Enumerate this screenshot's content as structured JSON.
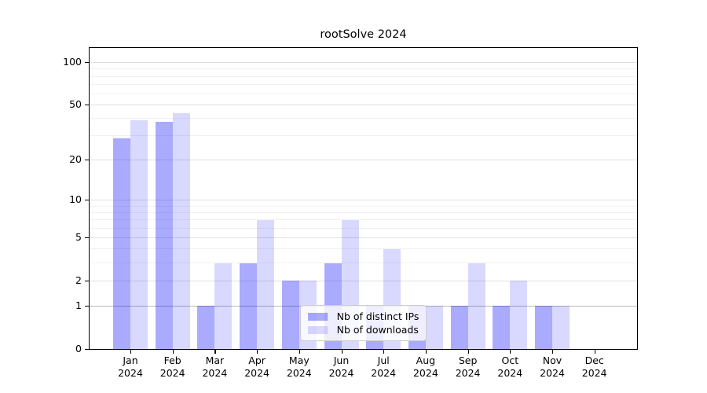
{
  "title": "rootSolve 2024",
  "chart_data": {
    "type": "bar",
    "title": "rootSolve 2024",
    "xlabel": "",
    "ylabel": "",
    "scale": "log1p",
    "grid": true,
    "legend_position": "lower center",
    "categories": [
      "Jan",
      "Feb",
      "Mar",
      "Apr",
      "May",
      "Jun",
      "Jul",
      "Aug",
      "Sep",
      "Oct",
      "Nov",
      "Dec"
    ],
    "year_label": "2024",
    "series": [
      {
        "name": "Nb of distinct IPs",
        "hex": "#aaaaff",
        "fill": "rgba(0,0,255,0.335)",
        "values": [
          29,
          38,
          1,
          3,
          2,
          3,
          1,
          1,
          1,
          1,
          1,
          0
        ]
      },
      {
        "name": "Nb of downloads",
        "hex": "#d9d9ff",
        "fill": "rgba(0,0,255,0.15)",
        "values": [
          39,
          44,
          3,
          7,
          2,
          7,
          4,
          1,
          3,
          2,
          1,
          0
        ]
      }
    ],
    "yticks": [
      0,
      1,
      2,
      5,
      10,
      20,
      50,
      100
    ],
    "minor_gridlines": [
      3,
      4,
      6,
      7,
      8,
      9,
      30,
      40,
      60,
      70,
      80,
      90
    ],
    "ylim": [
      0,
      127
    ],
    "gridline_colors": {
      "baseline_one": "#b9b9b9",
      "major": "#e1e1e1",
      "minor": "#f1f1f1"
    },
    "axis_color": "#000000"
  }
}
